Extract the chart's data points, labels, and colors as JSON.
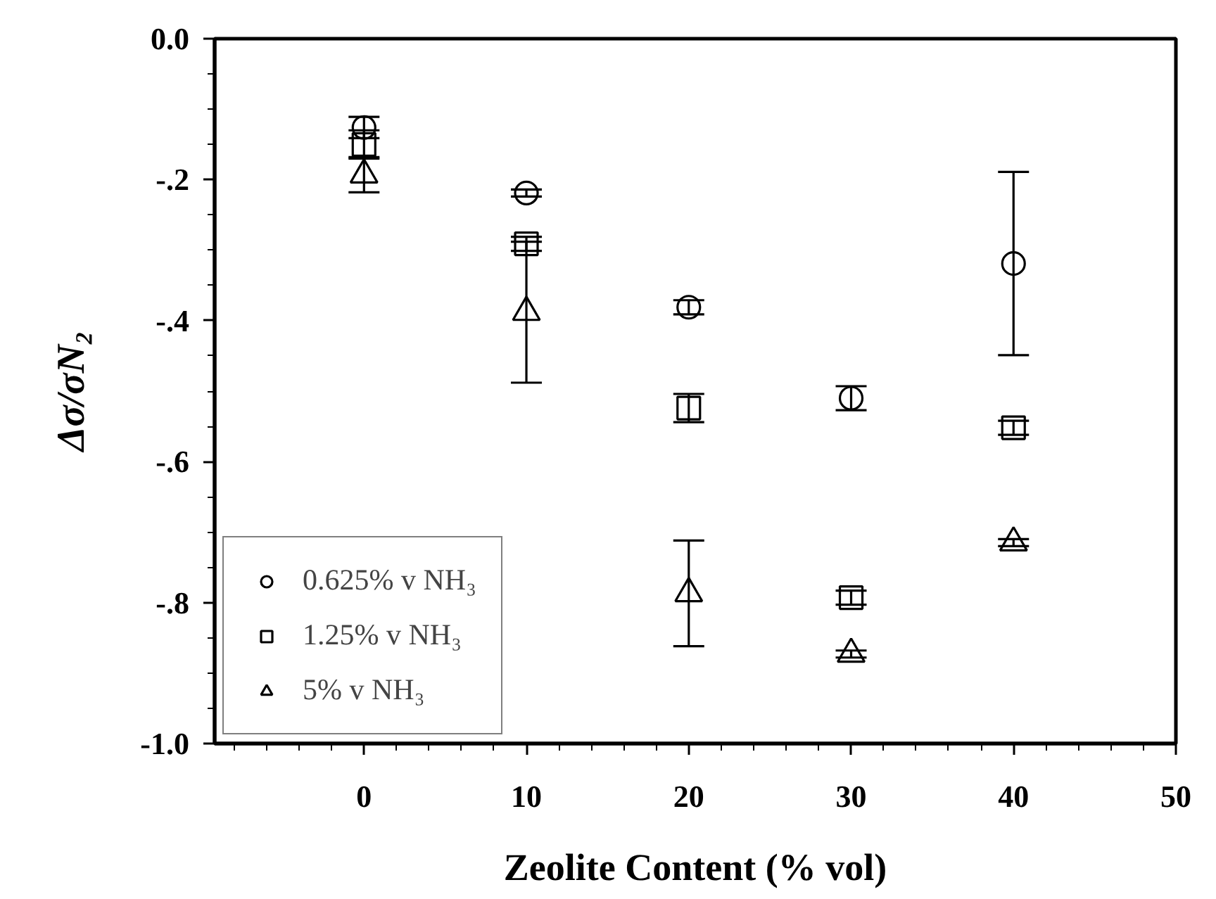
{
  "chart_data": {
    "type": "scatter",
    "xlabel": "Zeolite Content (% vol)",
    "ylabel": "Δσ/σN₂",
    "x": [
      0,
      10,
      20,
      30,
      40
    ],
    "series": [
      {
        "name": "0.625% v NH₃",
        "color": "#000000",
        "marker": "circle",
        "values": [
          -0.126,
          -0.219,
          -0.381,
          -0.51,
          -0.319
        ],
        "errors": [
          0.015,
          0.005,
          0.01,
          0.017,
          0.13
        ]
      },
      {
        "name": "1.25% v NH₃",
        "color": "#000000",
        "marker": "square",
        "values": [
          -0.15,
          -0.291,
          -0.524,
          -0.793,
          -0.552
        ],
        "errors": [
          0.02,
          0.01,
          0.02,
          0.01,
          0.01
        ]
      },
      {
        "name": "5% v NH₃",
        "color": "#000000",
        "marker": "triangle",
        "values": [
          -0.193,
          -0.388,
          -0.787,
          -0.873,
          -0.715
        ],
        "errors": [
          0.025,
          0.1,
          0.075,
          0.005,
          0.005
        ]
      }
    ],
    "xlim": [
      -9.2,
      50
    ],
    "ylim": [
      -1.0,
      0.0
    ],
    "xticks": [
      0,
      10,
      20,
      30,
      40,
      50
    ],
    "yticks": [
      {
        "value": 0.0,
        "label": "0.0"
      },
      {
        "value": -0.2,
        "label": "-.2"
      },
      {
        "value": -0.4,
        "label": "-.4"
      },
      {
        "value": -0.6,
        "label": "-.6"
      },
      {
        "value": -0.8,
        "label": "-.8"
      },
      {
        "value": -1.0,
        "label": "-1.0"
      }
    ],
    "grid": false,
    "legend": "bottom left"
  }
}
